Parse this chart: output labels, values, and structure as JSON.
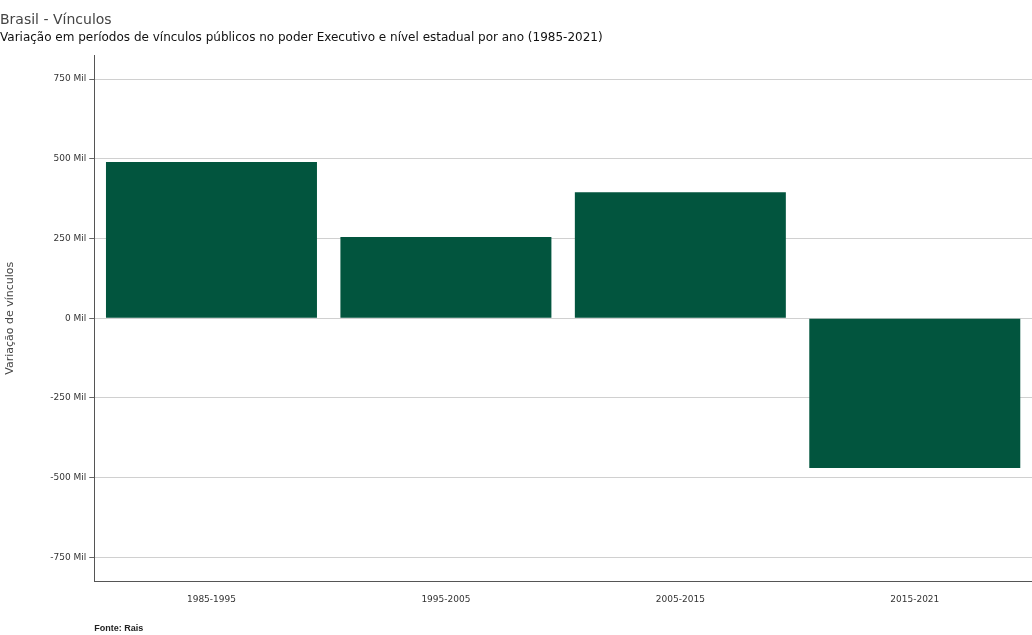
{
  "chart_data": {
    "type": "bar",
    "title": "Brasil - Vínculos",
    "subtitle": "Variação em períodos de vínculos públicos no poder Executivo e nível estadual por ano (1985-2021)",
    "ylabel": "Variação de vínculos",
    "categories": [
      "1985-1995",
      "1995-2005",
      "2005-2015",
      "2015-2021"
    ],
    "values": [
      490,
      255,
      395,
      -470
    ],
    "color": "#02553e",
    "ylim": [
      -825,
      825
    ],
    "yticks": [
      {
        "value": -750,
        "label": "-750 Mil"
      },
      {
        "value": -500,
        "label": "-500 Mil"
      },
      {
        "value": -250,
        "label": "-250 Mil"
      },
      {
        "value": 0,
        "label": "0 Mil"
      },
      {
        "value": 250,
        "label": "250 Mil"
      },
      {
        "value": 500,
        "label": "500 Mil"
      },
      {
        "value": 750,
        "label": "750 Mil"
      }
    ],
    "grid": "y",
    "legend": false,
    "annotations": [
      "Fonte: Rais"
    ]
  }
}
